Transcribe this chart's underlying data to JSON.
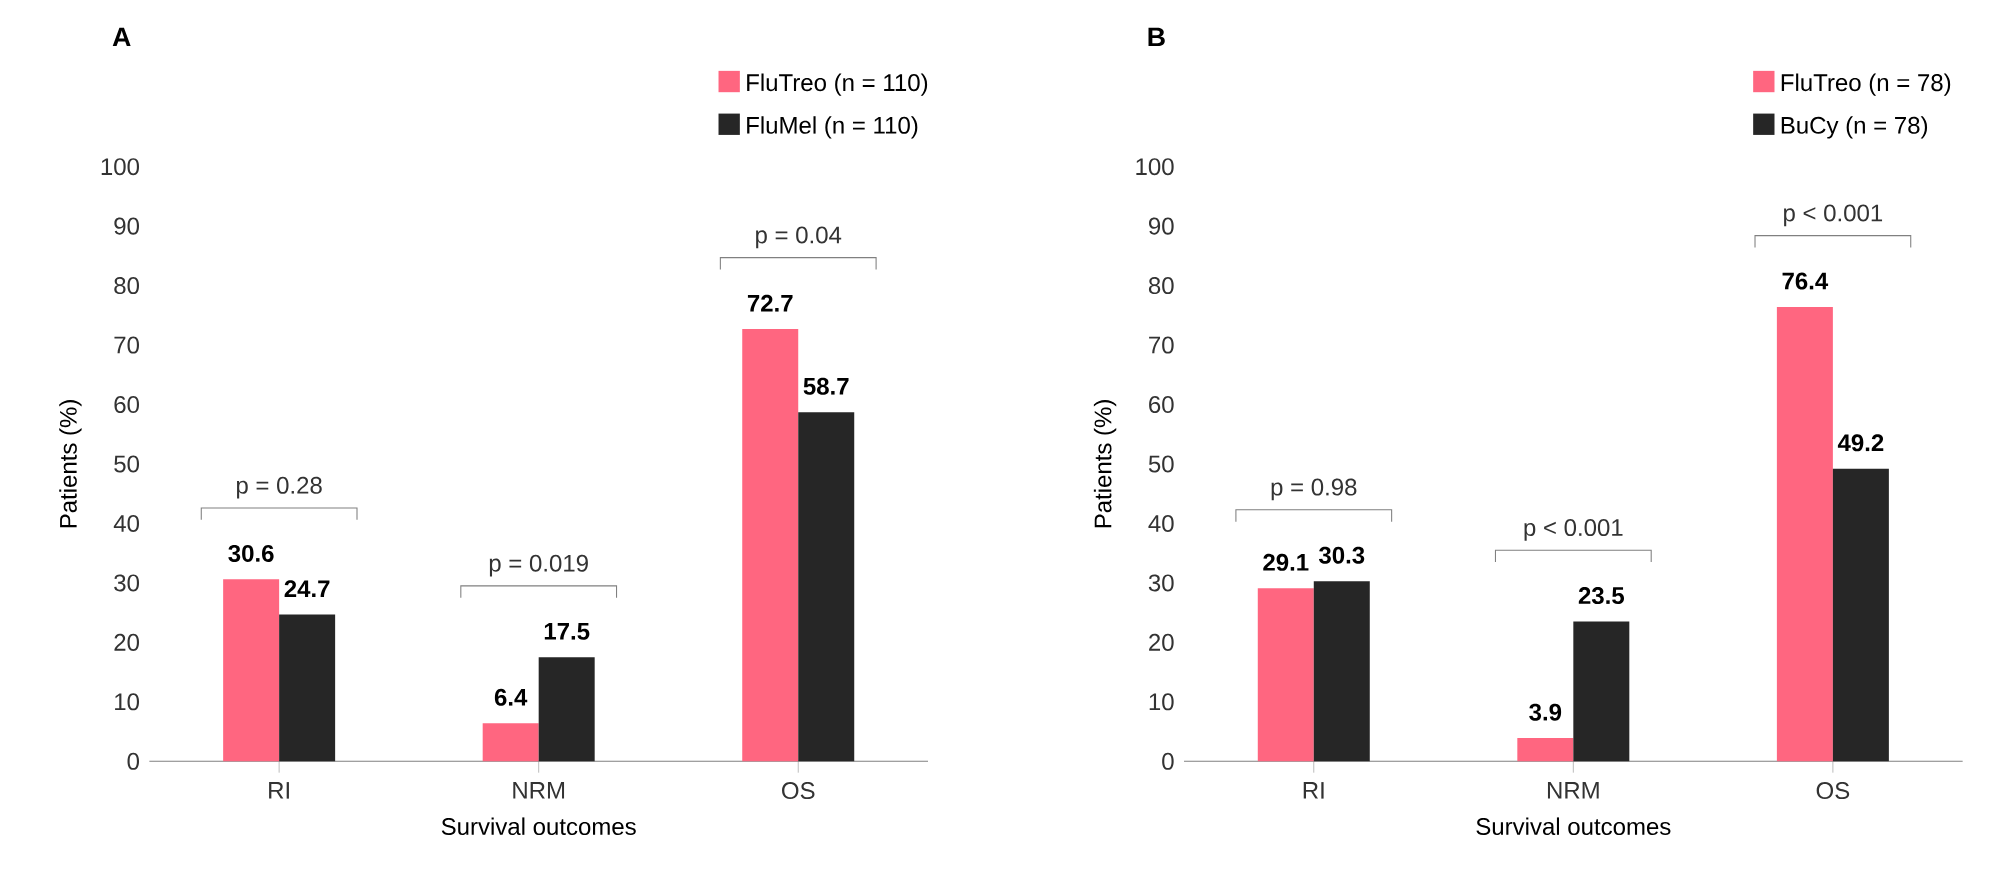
{
  "chart_data": [
    {
      "type": "bar",
      "title": "A",
      "xlabel": "Survival outcomes",
      "ylabel": "Patients (%)",
      "categories": [
        "RI",
        "NRM",
        "OS"
      ],
      "series": [
        {
          "name": "FluTreo (n = 110)",
          "color": "#ff6680",
          "values": [
            30.6,
            6.4,
            72.7
          ]
        },
        {
          "name": "FluMel (n = 110)",
          "color": "#262626",
          "values": [
            24.7,
            17.5,
            58.7
          ]
        }
      ],
      "ylim": [
        0,
        100
      ],
      "yticks": [
        0,
        10,
        20,
        30,
        40,
        50,
        60,
        70,
        80,
        90,
        100
      ],
      "data_labels": true,
      "legend": "top right",
      "grid": false,
      "annotations": [
        "p = 0.28",
        "p = 0.019",
        "p = 0.04"
      ]
    },
    {
      "type": "bar",
      "title": "B",
      "xlabel": "Survival outcomes",
      "ylabel": "Patients (%)",
      "categories": [
        "RI",
        "NRM",
        "OS"
      ],
      "series": [
        {
          "name": "FluTreo (n = 78)",
          "color": "#ff6680",
          "values": [
            29.1,
            3.9,
            76.4
          ]
        },
        {
          "name": "BuCy (n = 78)",
          "color": "#262626",
          "values": [
            30.3,
            23.5,
            49.2
          ]
        }
      ],
      "ylim": [
        0,
        100
      ],
      "yticks": [
        0,
        10,
        20,
        30,
        40,
        50,
        60,
        70,
        80,
        90,
        100
      ],
      "data_labels": true,
      "legend": "top right",
      "grid": false,
      "annotations": [
        "p = 0.98",
        "p < 0.001",
        "p < 0.001"
      ]
    }
  ]
}
